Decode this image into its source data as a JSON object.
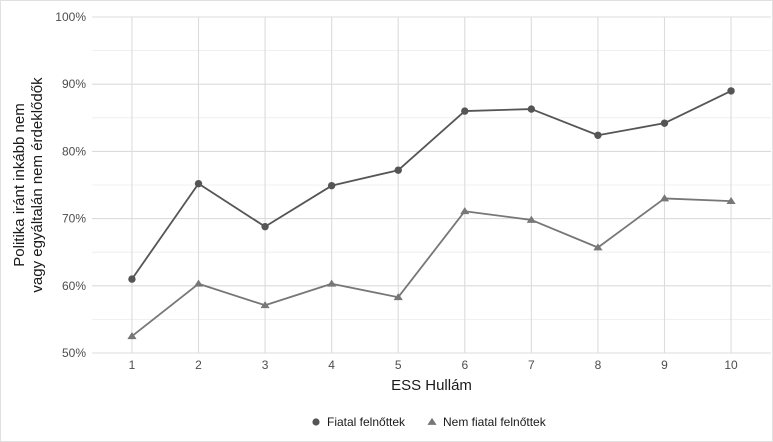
{
  "chart_data": {
    "type": "line",
    "x": [
      1,
      2,
      3,
      4,
      5,
      6,
      7,
      8,
      9,
      10
    ],
    "xlabel": "ESS Hullám",
    "ylabel_lines": [
      "Politika iránt inkább nem",
      "vagy egyáltalán nem érdeklődők"
    ],
    "ylim": [
      0.5,
      1.0
    ],
    "xlim": [
      0.4,
      10.6
    ],
    "y_ticks": [
      {
        "value": 0.5,
        "label": "50%"
      },
      {
        "value": 0.6,
        "label": "60%"
      },
      {
        "value": 0.7,
        "label": "70%"
      },
      {
        "value": 0.8,
        "label": "80%"
      },
      {
        "value": 0.9,
        "label": "90%"
      },
      {
        "value": 1.0,
        "label": "100%"
      }
    ],
    "x_tick_labels": [
      "1",
      "2",
      "3",
      "4",
      "5",
      "6",
      "7",
      "8",
      "9",
      "10"
    ],
    "grid": true,
    "legend_position": "bottom",
    "series": [
      {
        "name": "Fiatal felnőttek",
        "marker": "circle",
        "color": "#555555",
        "values": [
          0.61,
          0.752,
          0.688,
          0.749,
          0.772,
          0.86,
          0.863,
          0.824,
          0.842,
          0.89
        ]
      },
      {
        "name": "Nem fiatal felnőttek",
        "marker": "triangle",
        "color": "#777777",
        "values": [
          0.525,
          0.603,
          0.571,
          0.603,
          0.583,
          0.711,
          0.698,
          0.657,
          0.73,
          0.726
        ]
      }
    ]
  }
}
